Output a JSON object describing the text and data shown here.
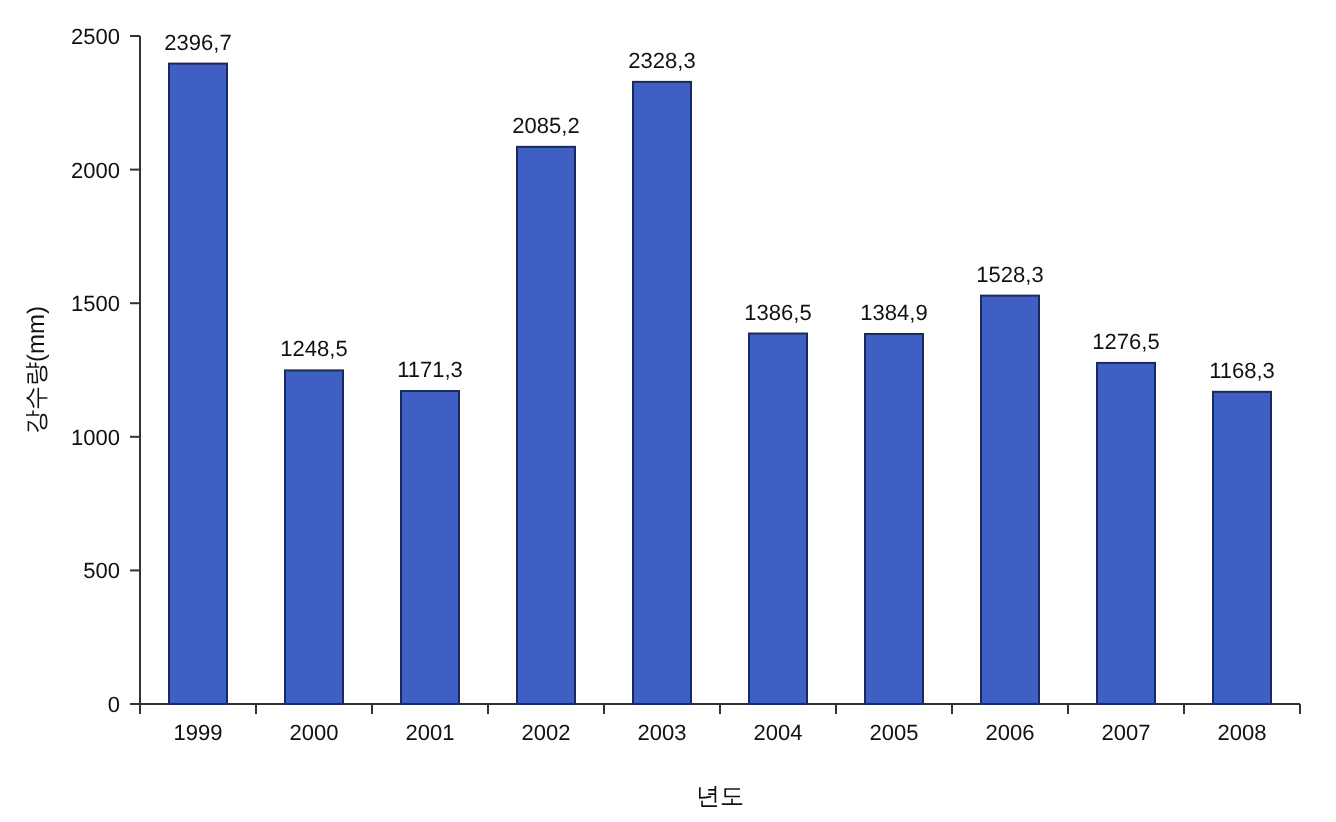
{
  "chart_data": {
    "type": "bar",
    "categories": [
      "1999",
      "2000",
      "2001",
      "2002",
      "2003",
      "2004",
      "2005",
      "2006",
      "2007",
      "2008"
    ],
    "values": [
      2396.7,
      1248.5,
      1171.3,
      2085.2,
      2328.3,
      1386.5,
      1384.9,
      1528.3,
      1276.5,
      1168.3
    ],
    "value_labels": [
      "2396,7",
      "1248,5",
      "1171,3",
      "2085,2",
      "2328,3",
      "1386,5",
      "1384,9",
      "1528,3",
      "1276,5",
      "1168,3"
    ],
    "color": "#3f5fc4",
    "xlabel": "년도",
    "ylabel": "강수량(mm)",
    "ylim": [
      0,
      2500
    ],
    "yticks": [
      0,
      500,
      1000,
      1500,
      2000,
      2500
    ]
  }
}
